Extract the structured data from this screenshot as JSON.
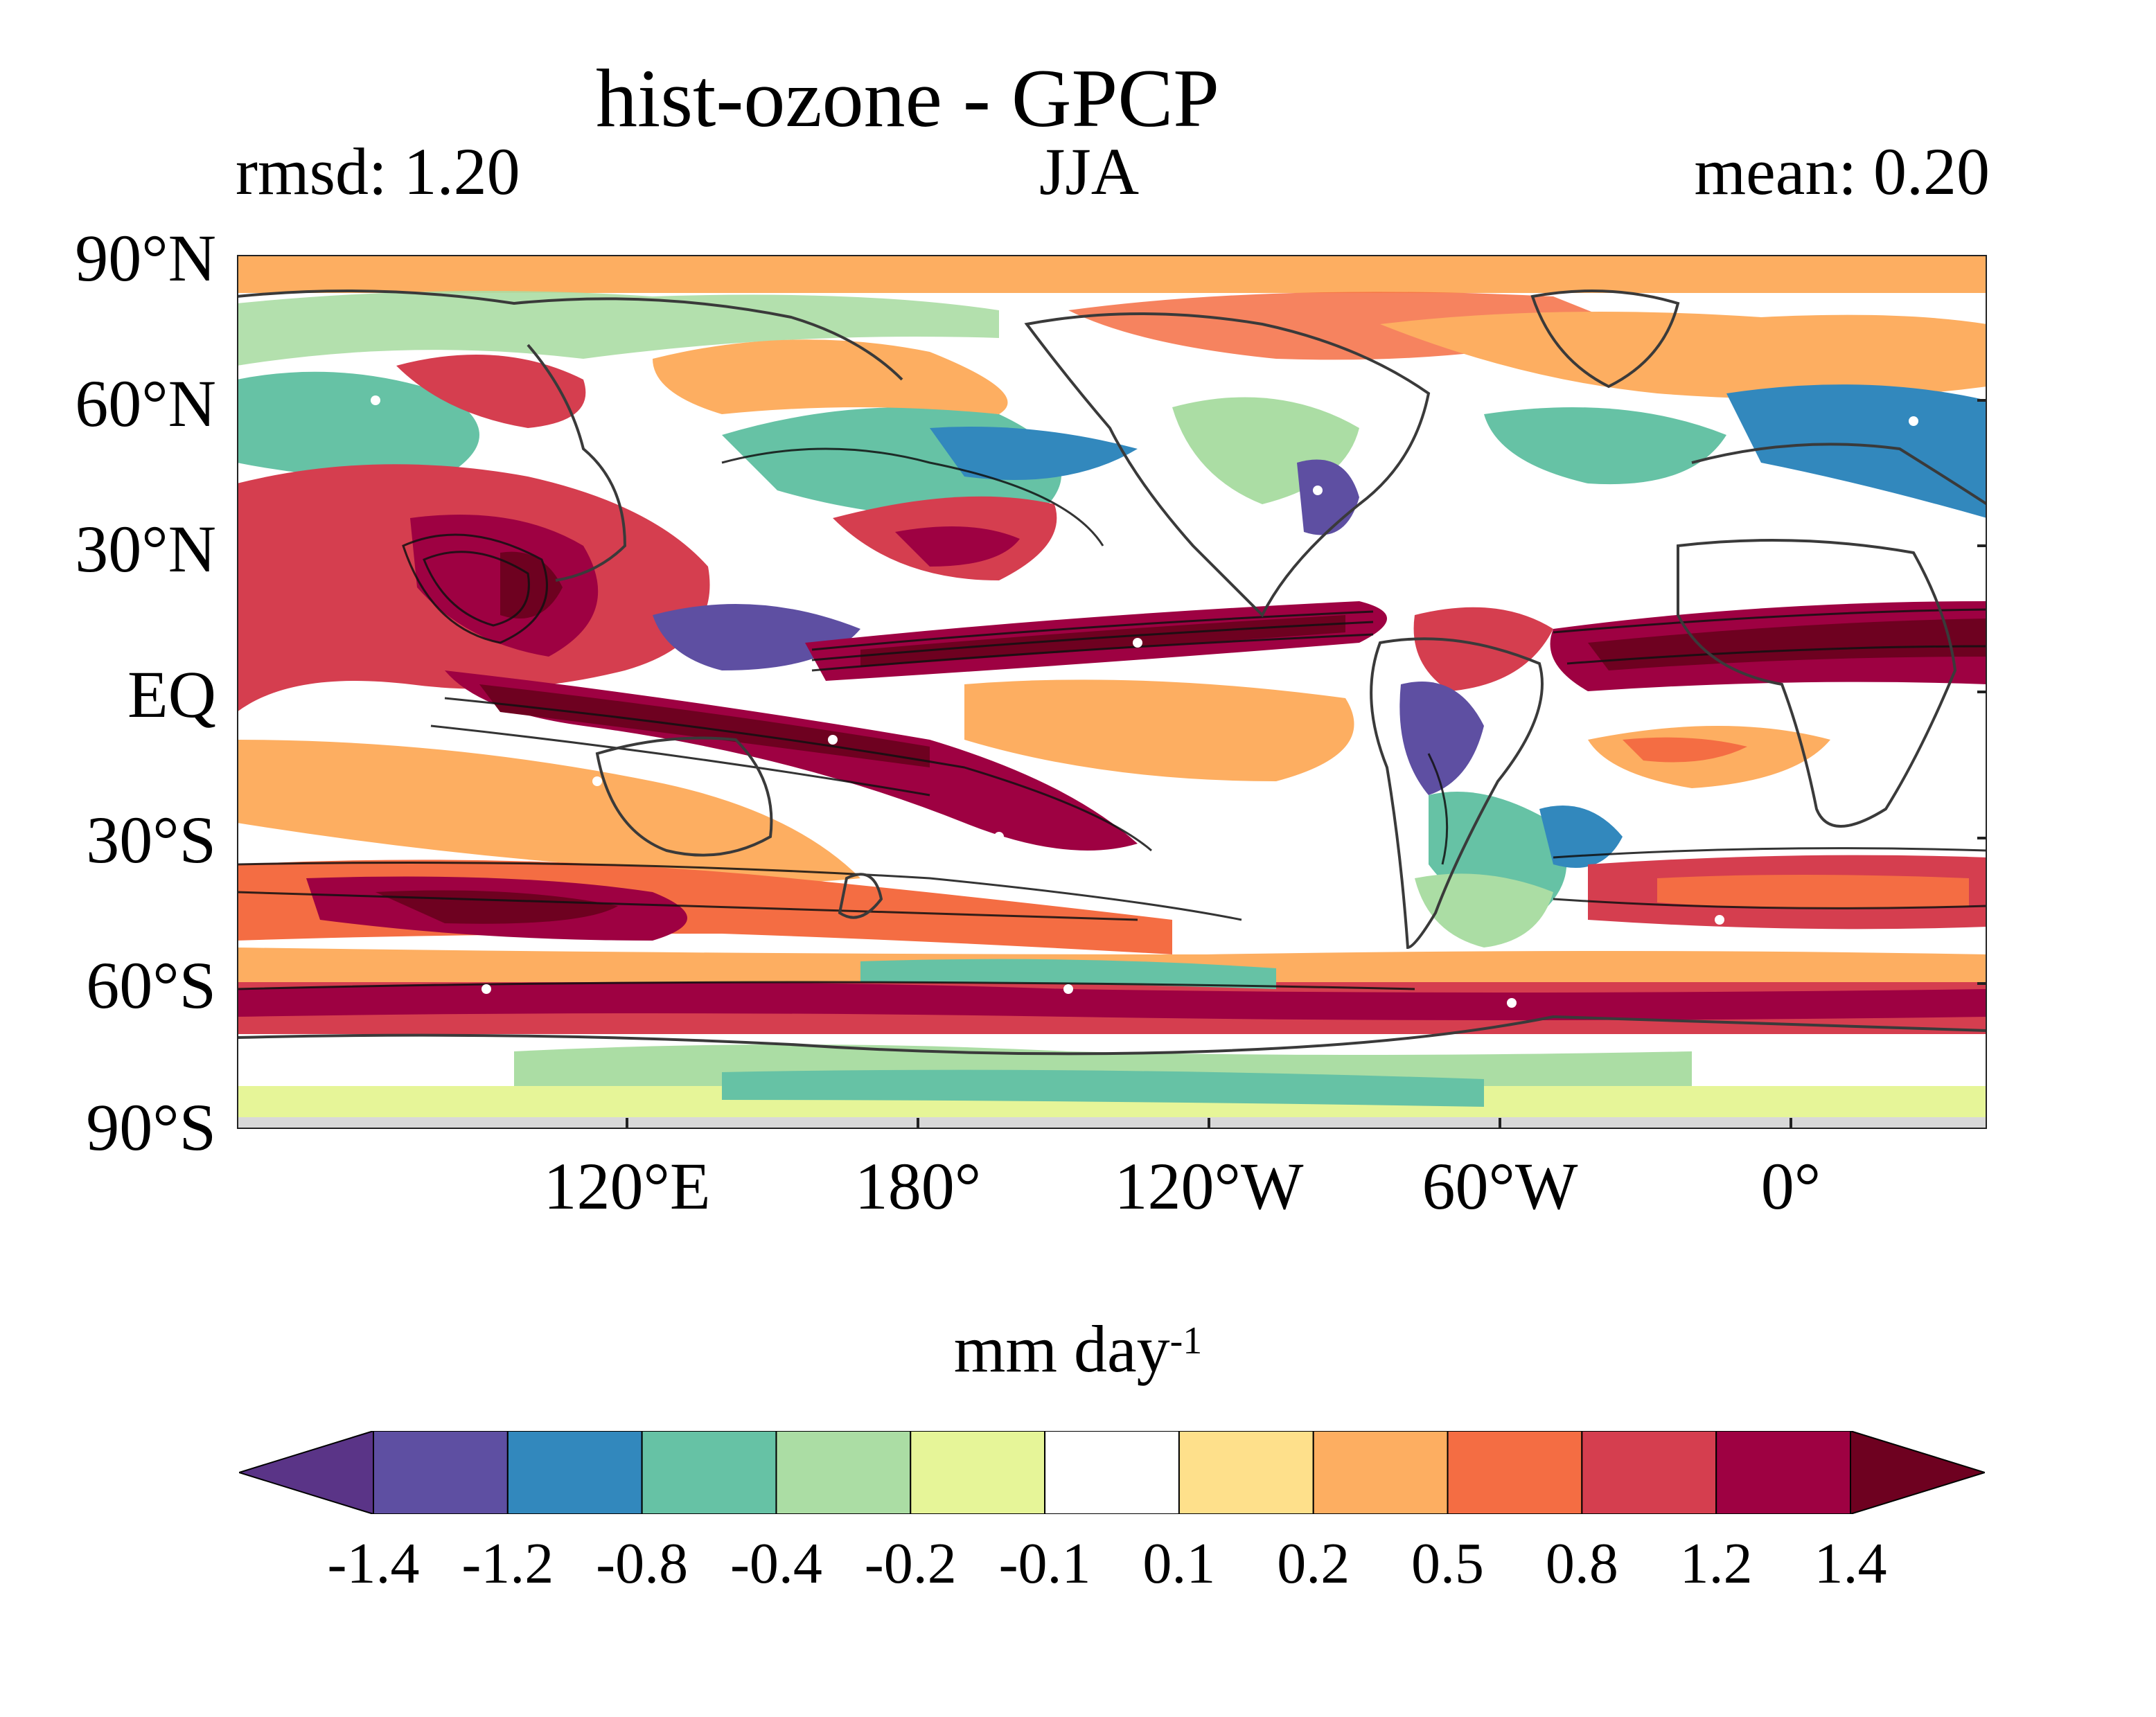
{
  "title": "hist-ozone - GPCP",
  "subtitle_left": "rmsd: 1.20",
  "subtitle_center": "JJA",
  "subtitle_right": "mean: 0.20",
  "map": {
    "y_ticks": [
      "90°N",
      "60°N",
      "30°N",
      "EQ",
      "30°S",
      "60°S",
      "90°S"
    ],
    "x_ticks": [
      "120°E",
      "180°",
      "120°W",
      "60°W",
      "0°"
    ],
    "fields": "precipitation difference (filled) with model climatology contours and coastlines"
  },
  "colorbar": {
    "units_text": "mm day",
    "units_exp": "-1",
    "levels": [
      "-1.4",
      "-1.2",
      "-0.8",
      "-0.4",
      "-0.2",
      "-0.1",
      "0.1",
      "0.2",
      "0.5",
      "0.8",
      "1.2",
      "1.4"
    ],
    "colors": [
      "#5a3487",
      "#5e4fa2",
      "#3288bd",
      "#66c2a5",
      "#abdda4",
      "#e6f598",
      "#ffffff",
      "#fee08b",
      "#fdae61",
      "#f46d43",
      "#d53e4f",
      "#9e0142",
      "#6e0120"
    ],
    "extend": "both"
  }
}
